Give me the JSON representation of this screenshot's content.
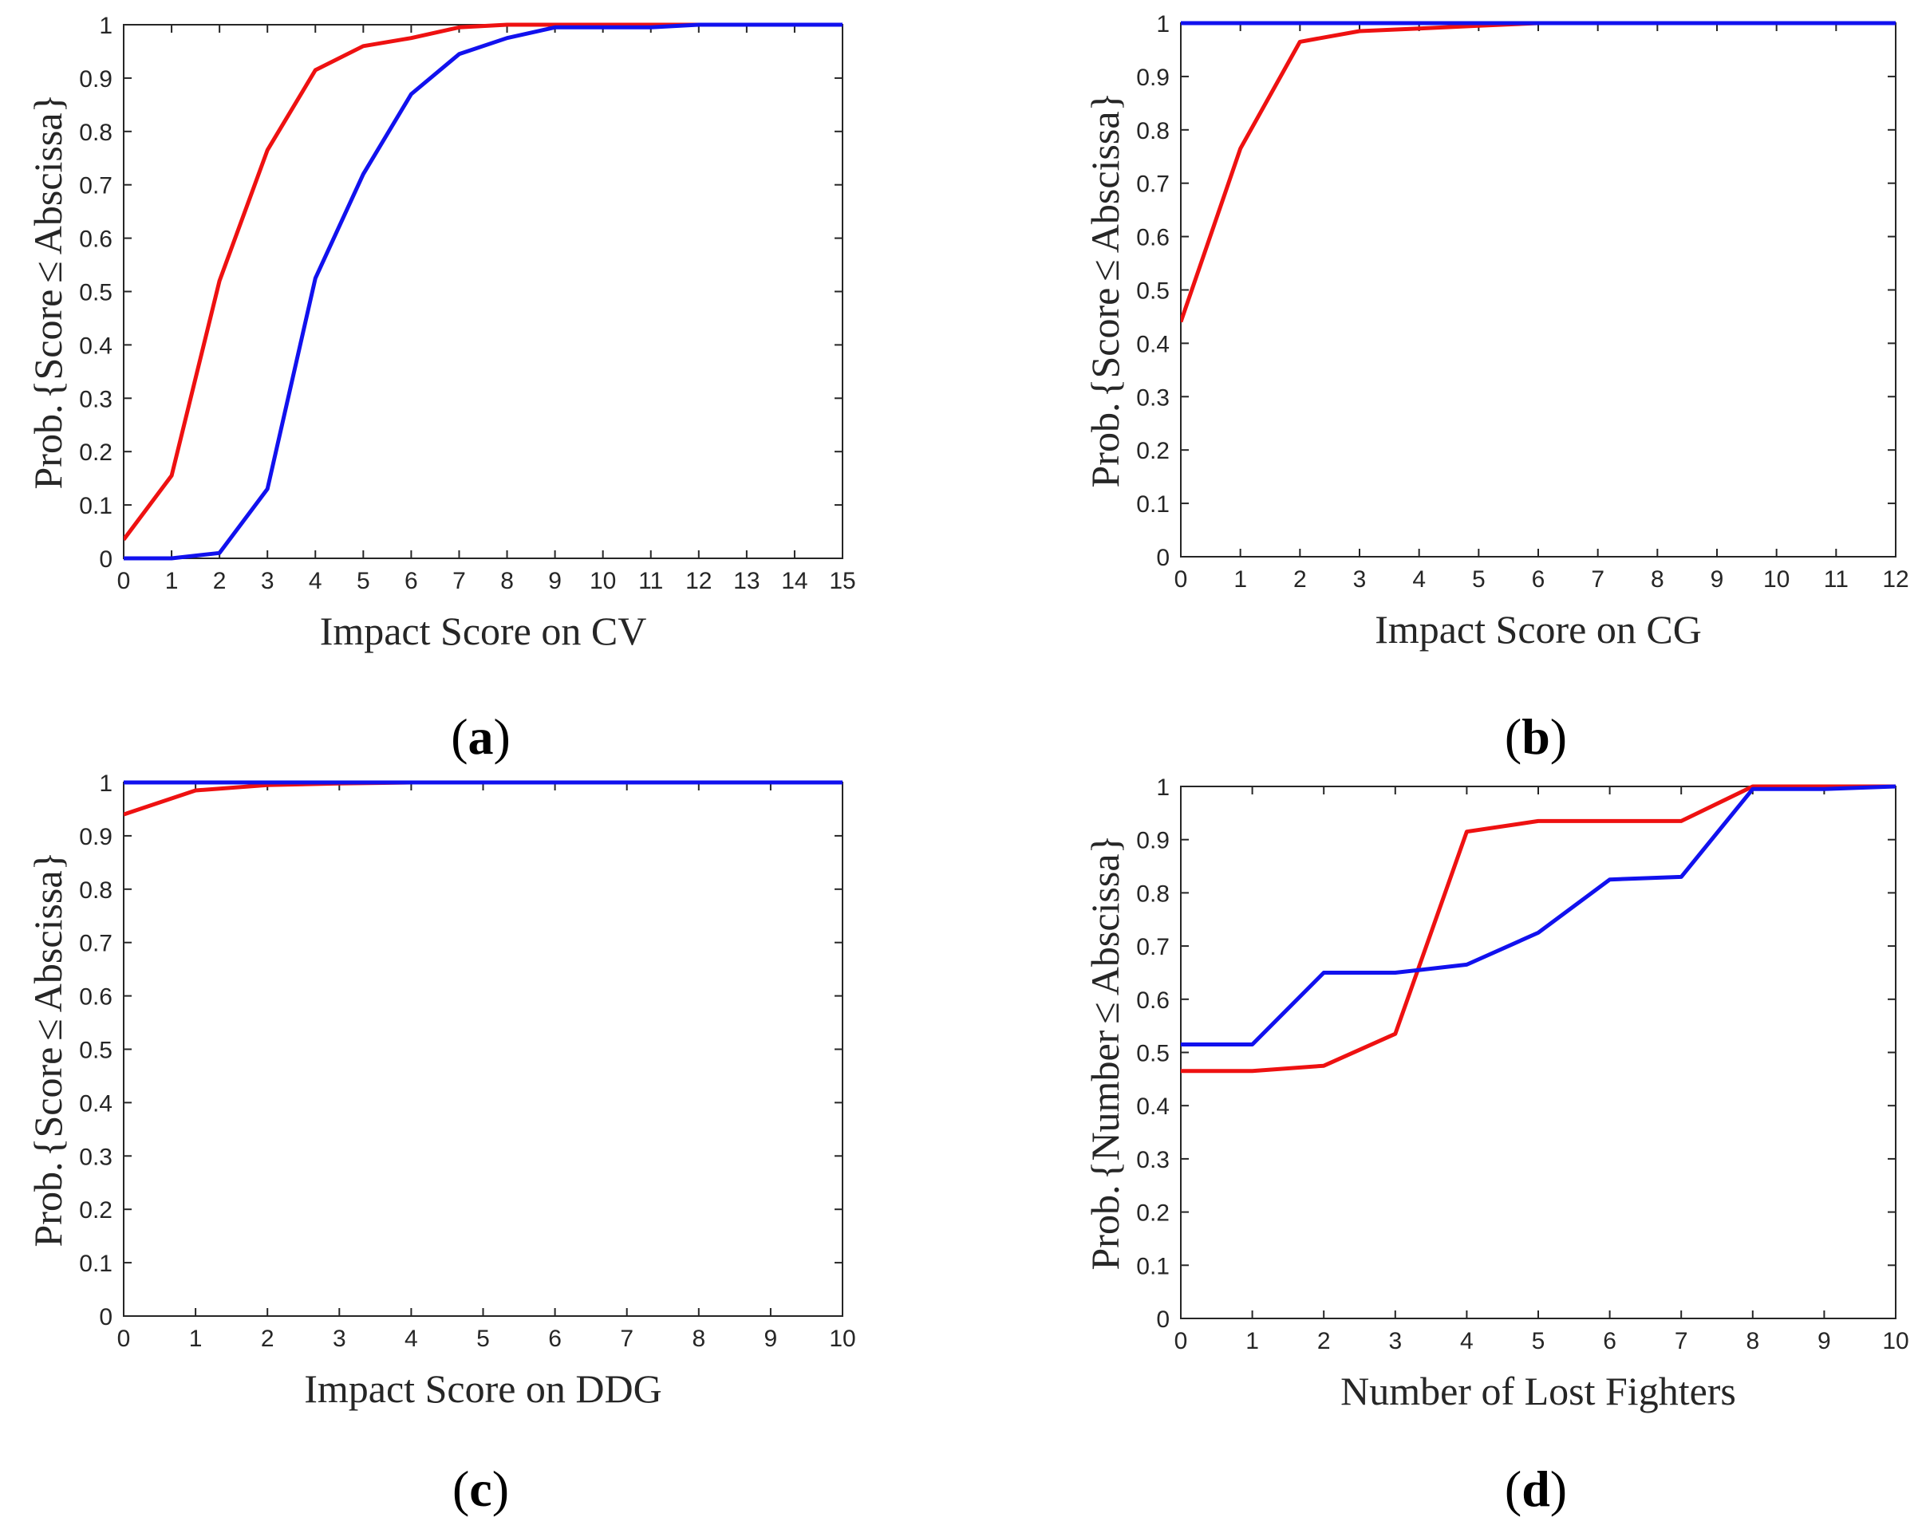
{
  "figure": {
    "colors": {
      "red": "#ee1111",
      "blue": "#1111ee",
      "axis": "#262626"
    }
  },
  "chart_data": [
    {
      "id": "a",
      "type": "line",
      "caption_letter": "a",
      "xlabel": "Impact Score on CV",
      "ylabel_parts": [
        "Prob.",
        "{",
        "Score",
        "≤",
        "Abscissa",
        "}"
      ],
      "xlim": [
        0,
        15
      ],
      "ylim": [
        0,
        1
      ],
      "xticks": [
        0,
        1,
        2,
        3,
        4,
        5,
        6,
        7,
        8,
        9,
        10,
        11,
        12,
        13,
        14,
        15
      ],
      "yticks": [
        0,
        0.1,
        0.2,
        0.3,
        0.4,
        0.5,
        0.6,
        0.7,
        0.8,
        0.9,
        1
      ],
      "series": [
        {
          "name": "red",
          "color": "#ee1111",
          "x": [
            0,
            1,
            2,
            3,
            4,
            5,
            6,
            7,
            8,
            9,
            10,
            11,
            12,
            13,
            14,
            15
          ],
          "y": [
            0.035,
            0.155,
            0.52,
            0.765,
            0.915,
            0.96,
            0.975,
            0.995,
            1,
            1,
            1,
            1,
            1,
            1,
            1,
            1
          ]
        },
        {
          "name": "blue",
          "color": "#1111ee",
          "x": [
            0,
            1,
            2,
            3,
            4,
            5,
            6,
            7,
            8,
            9,
            10,
            11,
            12,
            13,
            14,
            15
          ],
          "y": [
            0,
            0,
            0.01,
            0.13,
            0.525,
            0.72,
            0.87,
            0.945,
            0.975,
            0.995,
            0.995,
            0.995,
            1,
            1,
            1,
            1
          ]
        }
      ]
    },
    {
      "id": "b",
      "type": "line",
      "caption_letter": "b",
      "xlabel": "Impact Score on CG",
      "ylabel_parts": [
        "Prob.",
        "{",
        "Score",
        "≤",
        "Abscissa",
        "}"
      ],
      "xlim": [
        0,
        12
      ],
      "ylim": [
        0,
        1
      ],
      "xticks": [
        0,
        1,
        2,
        3,
        4,
        5,
        6,
        7,
        8,
        9,
        10,
        11,
        12
      ],
      "yticks": [
        0,
        0.1,
        0.2,
        0.3,
        0.4,
        0.5,
        0.6,
        0.7,
        0.8,
        0.9,
        1
      ],
      "series": [
        {
          "name": "red",
          "color": "#ee1111",
          "x": [
            0,
            1,
            2,
            3,
            4,
            5,
            6,
            7,
            8,
            9,
            10,
            11,
            12
          ],
          "y": [
            0.44,
            0.765,
            0.965,
            0.985,
            0.99,
            0.995,
            1,
            1,
            1,
            1,
            1,
            1,
            1
          ]
        },
        {
          "name": "blue",
          "color": "#1111ee",
          "x": [
            0,
            1,
            2,
            3,
            4,
            5,
            6,
            7,
            8,
            9,
            10,
            11,
            12
          ],
          "y": [
            1,
            1,
            1,
            1,
            1,
            1,
            1,
            1,
            1,
            1,
            1,
            1,
            1
          ]
        }
      ]
    },
    {
      "id": "c",
      "type": "line",
      "caption_letter": "c",
      "xlabel": "Impact Score on DDG",
      "ylabel_parts": [
        "Prob.",
        "{",
        "Score",
        "≤",
        "Abscissa",
        "}"
      ],
      "xlim": [
        0,
        10
      ],
      "ylim": [
        0,
        1
      ],
      "xticks": [
        0,
        1,
        2,
        3,
        4,
        5,
        6,
        7,
        8,
        9,
        10
      ],
      "yticks": [
        0,
        0.1,
        0.2,
        0.3,
        0.4,
        0.5,
        0.6,
        0.7,
        0.8,
        0.9,
        1
      ],
      "series": [
        {
          "name": "red",
          "color": "#ee1111",
          "x": [
            0,
            1,
            2,
            3,
            4,
            5,
            6,
            7,
            8,
            9,
            10
          ],
          "y": [
            0.94,
            0.985,
            0.995,
            0.998,
            1,
            1,
            1,
            1,
            1,
            1,
            1
          ]
        },
        {
          "name": "blue",
          "color": "#1111ee",
          "x": [
            0,
            1,
            2,
            3,
            4,
            5,
            6,
            7,
            8,
            9,
            10
          ],
          "y": [
            1,
            1,
            1,
            1,
            1,
            1,
            1,
            1,
            1,
            1,
            1
          ]
        }
      ]
    },
    {
      "id": "d",
      "type": "line",
      "caption_letter": "d",
      "xlabel": "Number of Lost Fighters",
      "ylabel_parts": [
        "Prob.",
        "{",
        "Number",
        "≤",
        "Abscissa",
        "}"
      ],
      "xlim": [
        0,
        10
      ],
      "ylim": [
        0,
        1
      ],
      "xticks": [
        0,
        1,
        2,
        3,
        4,
        5,
        6,
        7,
        8,
        9,
        10
      ],
      "yticks": [
        0,
        0.1,
        0.2,
        0.3,
        0.4,
        0.5,
        0.6,
        0.7,
        0.8,
        0.9,
        1
      ],
      "series": [
        {
          "name": "red",
          "color": "#ee1111",
          "x": [
            0,
            1,
            2,
            3,
            4,
            5,
            6,
            7,
            8,
            9,
            10
          ],
          "y": [
            0.465,
            0.465,
            0.475,
            0.535,
            0.915,
            0.935,
            0.935,
            0.935,
            1,
            1,
            1
          ]
        },
        {
          "name": "blue",
          "color": "#1111ee",
          "x": [
            0,
            1,
            2,
            3,
            4,
            5,
            6,
            7,
            8,
            9,
            10
          ],
          "y": [
            0.515,
            0.515,
            0.65,
            0.65,
            0.665,
            0.725,
            0.825,
            0.83,
            0.995,
            0.995,
            1
          ]
        }
      ]
    }
  ]
}
